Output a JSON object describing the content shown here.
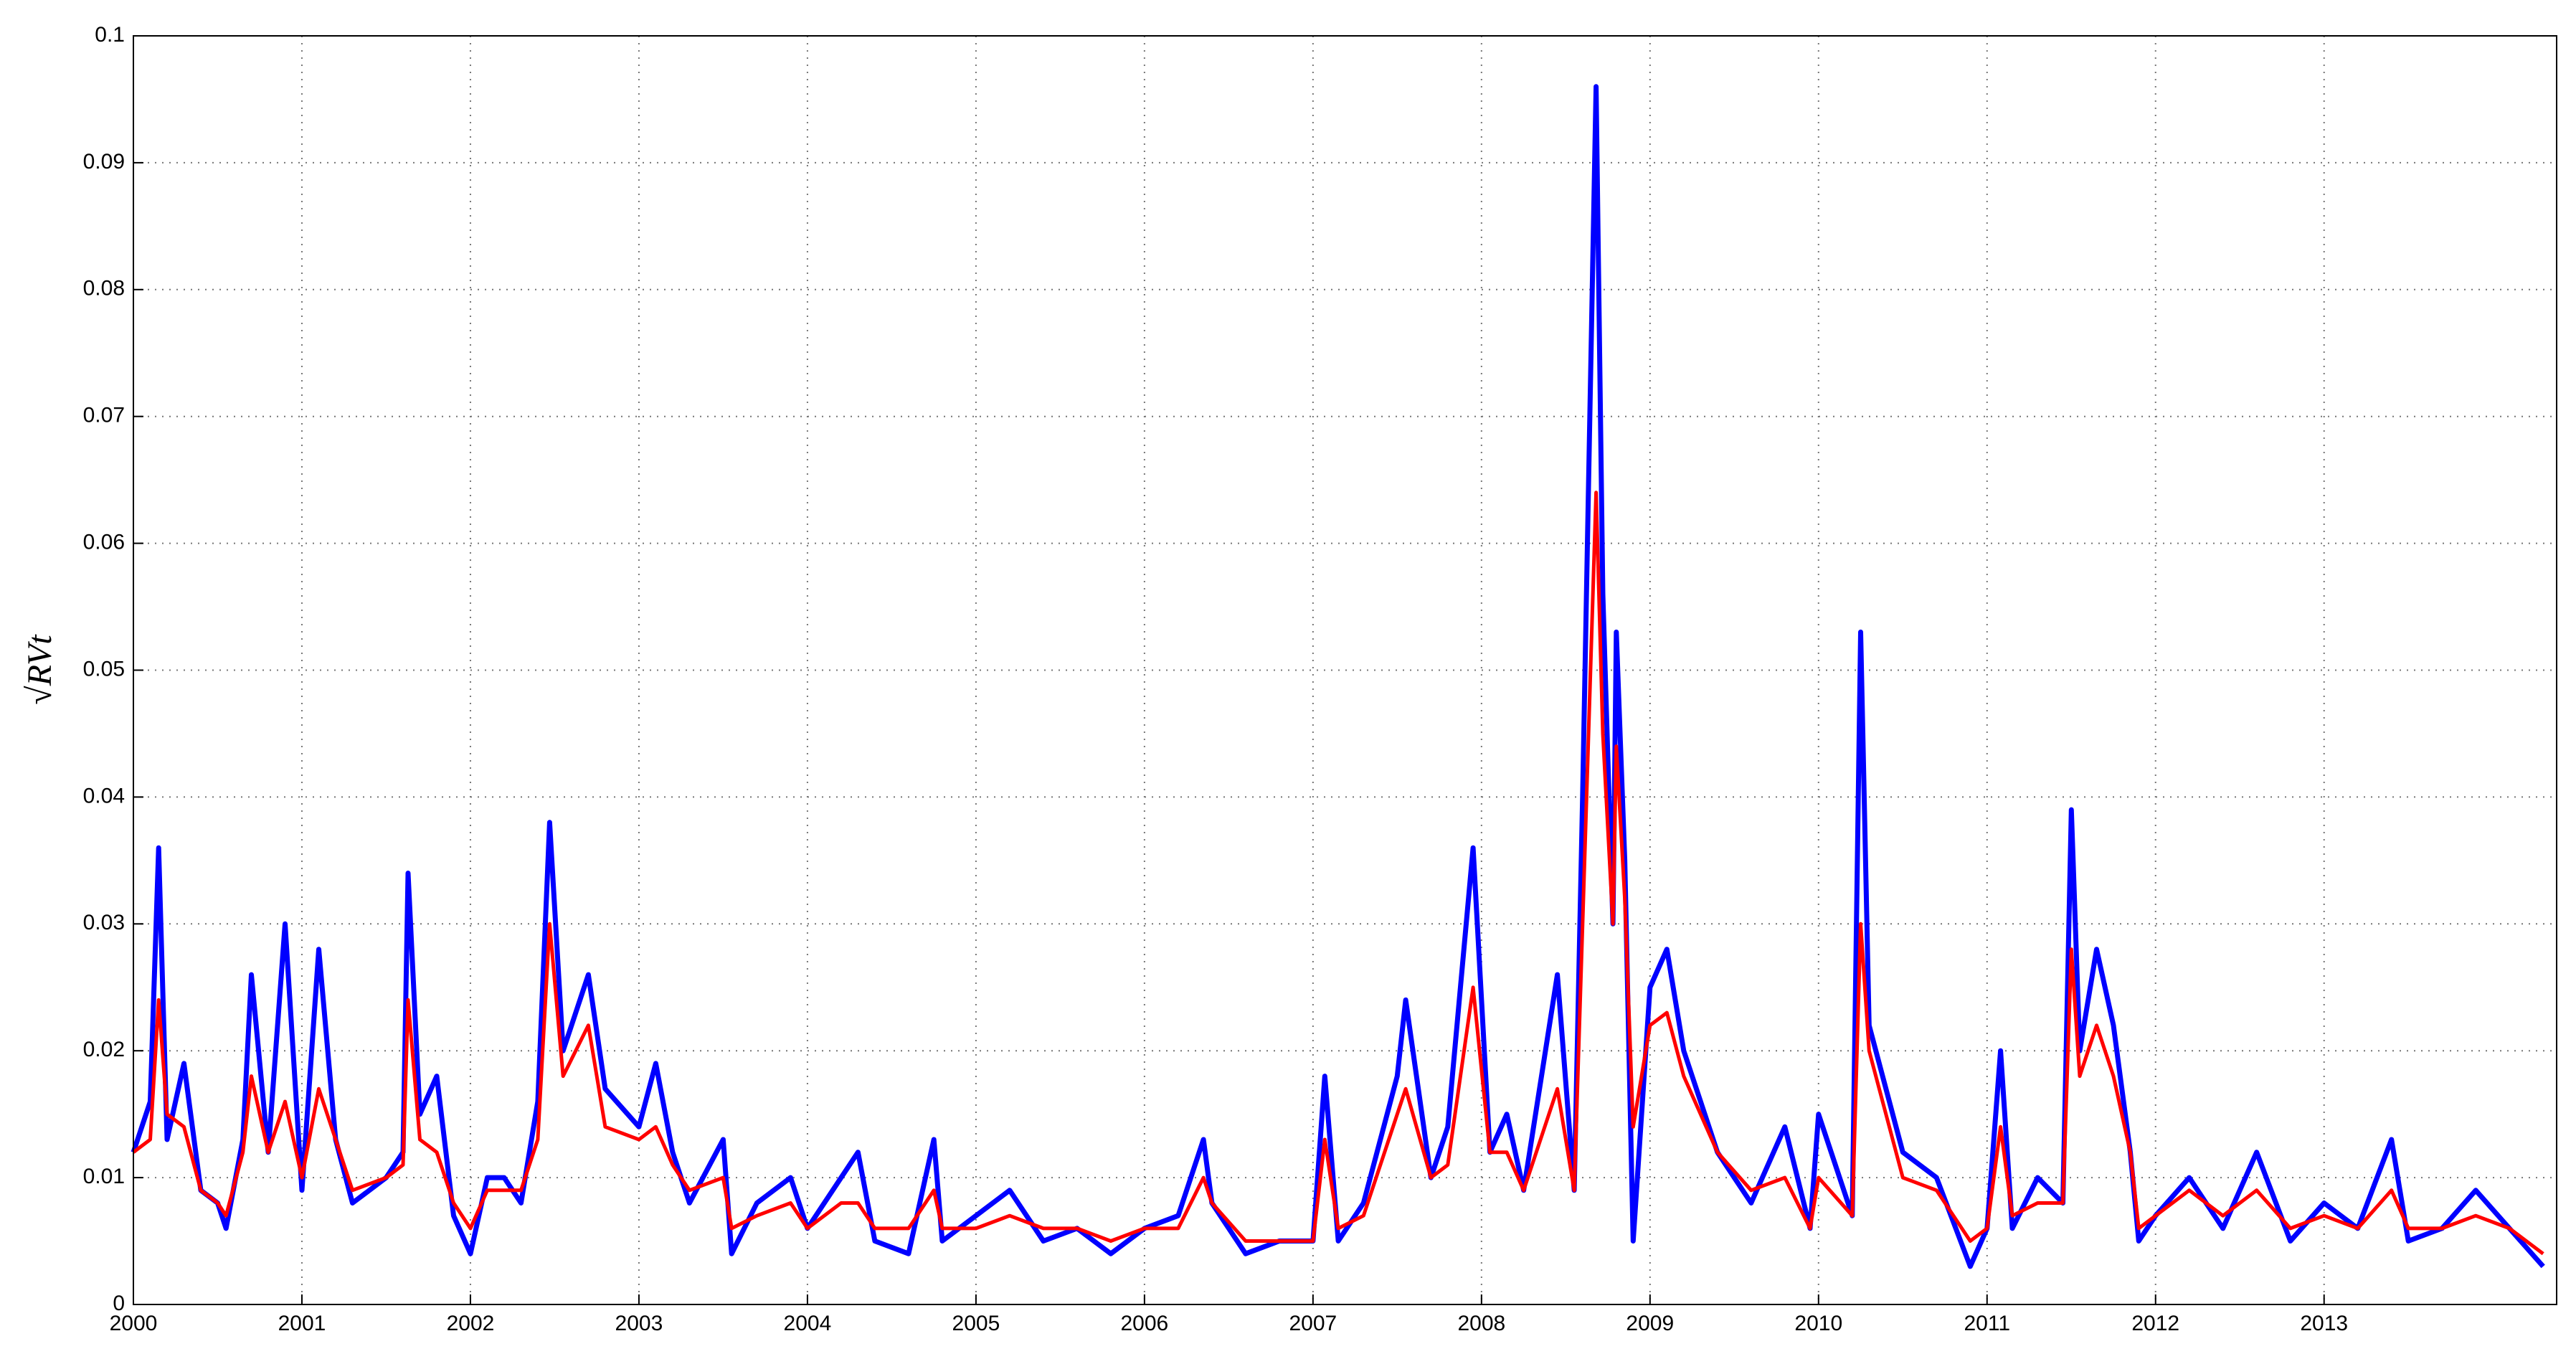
{
  "chart_data": {
    "type": "line",
    "ylabel": "√RVt",
    "x": [
      2000.0,
      2000.1,
      2000.15,
      2000.2,
      2000.3,
      2000.4,
      2000.5,
      2000.55,
      2000.65,
      2000.7,
      2000.8,
      2000.9,
      2001.0,
      2001.1,
      2001.2,
      2001.3,
      2001.5,
      2001.6,
      2001.63,
      2001.7,
      2001.8,
      2001.9,
      2002.0,
      2002.1,
      2002.2,
      2002.3,
      2002.4,
      2002.47,
      2002.55,
      2002.7,
      2002.8,
      2003.0,
      2003.1,
      2003.2,
      2003.3,
      2003.5,
      2003.55,
      2003.7,
      2003.9,
      2004.0,
      2004.2,
      2004.3,
      2004.4,
      2004.6,
      2004.75,
      2004.8,
      2005.0,
      2005.2,
      2005.4,
      2005.6,
      2005.8,
      2006.0,
      2006.2,
      2006.35,
      2006.4,
      2006.6,
      2006.8,
      2007.0,
      2007.07,
      2007.15,
      2007.3,
      2007.5,
      2007.55,
      2007.7,
      2007.8,
      2007.95,
      2008.05,
      2008.15,
      2008.25,
      2008.45,
      2008.55,
      2008.6,
      2008.68,
      2008.72,
      2008.78,
      2008.8,
      2008.85,
      2008.9,
      2009.0,
      2009.1,
      2009.2,
      2009.4,
      2009.6,
      2009.8,
      2009.95,
      2010.0,
      2010.2,
      2010.25,
      2010.3,
      2010.5,
      2010.7,
      2010.9,
      2011.0,
      2011.08,
      2011.15,
      2011.3,
      2011.45,
      2011.5,
      2011.55,
      2011.65,
      2011.75,
      2011.85,
      2011.9,
      2012.0,
      2012.2,
      2012.4,
      2012.6,
      2012.8,
      2013.0,
      2013.2,
      2013.4,
      2013.5,
      2013.7,
      2013.9,
      2014.1,
      2014.3
    ],
    "series": [
      {
        "color": "#0000ff",
        "values": [
          0.012,
          0.016,
          0.036,
          0.013,
          0.019,
          0.009,
          0.008,
          0.006,
          0.013,
          0.026,
          0.012,
          0.03,
          0.009,
          0.028,
          0.013,
          0.008,
          0.01,
          0.012,
          0.034,
          0.015,
          0.018,
          0.007,
          0.004,
          0.01,
          0.01,
          0.008,
          0.016,
          0.038,
          0.02,
          0.026,
          0.017,
          0.014,
          0.019,
          0.012,
          0.008,
          0.013,
          0.004,
          0.008,
          0.01,
          0.006,
          0.01,
          0.012,
          0.005,
          0.004,
          0.013,
          0.005,
          0.007,
          0.009,
          0.005,
          0.006,
          0.004,
          0.006,
          0.007,
          0.013,
          0.008,
          0.004,
          0.005,
          0.005,
          0.018,
          0.005,
          0.008,
          0.018,
          0.024,
          0.01,
          0.014,
          0.036,
          0.012,
          0.015,
          0.009,
          0.026,
          0.009,
          0.04,
          0.096,
          0.056,
          0.03,
          0.053,
          0.035,
          0.005,
          0.025,
          0.028,
          0.02,
          0.012,
          0.008,
          0.014,
          0.006,
          0.015,
          0.007,
          0.053,
          0.022,
          0.012,
          0.01,
          0.003,
          0.006,
          0.02,
          0.006,
          0.01,
          0.008,
          0.039,
          0.02,
          0.028,
          0.022,
          0.012,
          0.005,
          0.007,
          0.01,
          0.006,
          0.012,
          0.005,
          0.008,
          0.006,
          0.013,
          0.005,
          0.006,
          0.009,
          0.006,
          0.003
        ]
      },
      {
        "color": "#ff0000",
        "values": [
          0.012,
          0.013,
          0.024,
          0.015,
          0.014,
          0.009,
          0.008,
          0.007,
          0.012,
          0.018,
          0.012,
          0.016,
          0.01,
          0.017,
          0.013,
          0.009,
          0.01,
          0.011,
          0.024,
          0.013,
          0.012,
          0.008,
          0.006,
          0.009,
          0.009,
          0.009,
          0.013,
          0.03,
          0.018,
          0.022,
          0.014,
          0.013,
          0.014,
          0.011,
          0.009,
          0.01,
          0.006,
          0.007,
          0.008,
          0.006,
          0.008,
          0.008,
          0.006,
          0.006,
          0.009,
          0.006,
          0.006,
          0.007,
          0.006,
          0.006,
          0.005,
          0.006,
          0.006,
          0.01,
          0.008,
          0.005,
          0.005,
          0.005,
          0.013,
          0.006,
          0.007,
          0.015,
          0.017,
          0.01,
          0.011,
          0.025,
          0.012,
          0.012,
          0.009,
          0.017,
          0.009,
          0.03,
          0.064,
          0.045,
          0.03,
          0.044,
          0.032,
          0.014,
          0.022,
          0.023,
          0.018,
          0.012,
          0.009,
          0.01,
          0.006,
          0.01,
          0.007,
          0.03,
          0.02,
          0.01,
          0.009,
          0.005,
          0.006,
          0.014,
          0.007,
          0.008,
          0.008,
          0.028,
          0.018,
          0.022,
          0.018,
          0.012,
          0.006,
          0.007,
          0.009,
          0.007,
          0.009,
          0.006,
          0.007,
          0.006,
          0.009,
          0.006,
          0.006,
          0.007,
          0.006,
          0.004
        ]
      }
    ],
    "xlim": [
      2000,
      2014.38
    ],
    "xticks": [
      2000,
      2001,
      2002,
      2003,
      2004,
      2005,
      2006,
      2007,
      2008,
      2009,
      2010,
      2011,
      2012,
      2013
    ],
    "ylim": [
      0,
      0.1
    ],
    "yticks": [
      0,
      0.01,
      0.02,
      0.03,
      0.04,
      0.05,
      0.06,
      0.07,
      0.08,
      0.09,
      0.1
    ],
    "grid": true
  }
}
